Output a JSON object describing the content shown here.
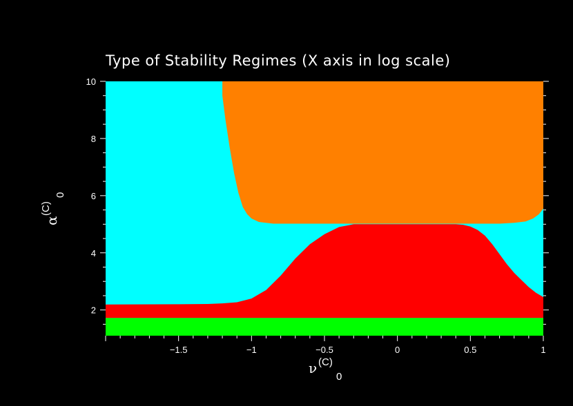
{
  "chart_data": {
    "type": "area",
    "title": "Type of Stability Regimes (X axis in log scale)",
    "xlabel": {
      "symbol": "ν",
      "superscript": "(C)",
      "subscript": "0"
    },
    "ylabel": {
      "symbol": "α",
      "superscript": "(C)",
      "subscript": "0"
    },
    "xlim": [
      -2,
      1
    ],
    "ylim": [
      1.1,
      10
    ],
    "x_ticks": [
      -1.5,
      -1,
      -0.5,
      0,
      0.5,
      1
    ],
    "x_tick_labels": [
      "−1.5",
      "−1",
      "−0.5",
      "0",
      "0.5",
      "1"
    ],
    "y_ticks": [
      2,
      4,
      6,
      8,
      10
    ],
    "y_tick_labels": [
      "2",
      "4",
      "6",
      "8",
      "10"
    ],
    "grid": false,
    "legend": "none",
    "background_color": "#00ffff",
    "regions": [
      {
        "color": "#00ff00",
        "polygon": [
          [
            -2,
            1.1
          ],
          [
            1,
            1.1
          ],
          [
            1,
            1.72
          ],
          [
            -2,
            1.72
          ]
        ]
      },
      {
        "color": "#ff0000",
        "polygon": [
          [
            -2,
            1.72
          ],
          [
            1,
            1.72
          ],
          [
            1,
            2.45
          ],
          [
            0.95,
            2.6
          ],
          [
            0.9,
            2.8
          ],
          [
            0.85,
            3.05
          ],
          [
            0.8,
            3.3
          ],
          [
            0.75,
            3.6
          ],
          [
            0.7,
            3.95
          ],
          [
            0.65,
            4.3
          ],
          [
            0.6,
            4.6
          ],
          [
            0.55,
            4.8
          ],
          [
            0.5,
            4.92
          ],
          [
            0.45,
            4.98
          ],
          [
            0.4,
            5.0
          ],
          [
            -0.3,
            5.0
          ],
          [
            -0.4,
            4.9
          ],
          [
            -0.5,
            4.65
          ],
          [
            -0.6,
            4.3
          ],
          [
            -0.7,
            3.8
          ],
          [
            -0.8,
            3.2
          ],
          [
            -0.9,
            2.7
          ],
          [
            -1.0,
            2.4
          ],
          [
            -1.1,
            2.27
          ],
          [
            -1.2,
            2.23
          ],
          [
            -1.3,
            2.21
          ],
          [
            -1.5,
            2.2
          ],
          [
            -2,
            2.19
          ]
        ]
      },
      {
        "color": "#ff8000",
        "polygon": [
          [
            -1.2,
            10
          ],
          [
            1,
            10
          ],
          [
            1,
            5.55
          ],
          [
            0.97,
            5.35
          ],
          [
            0.93,
            5.2
          ],
          [
            0.88,
            5.1
          ],
          [
            0.8,
            5.05
          ],
          [
            0.7,
            5.02
          ],
          [
            -0.85,
            5.02
          ],
          [
            -0.95,
            5.08
          ],
          [
            -1.0,
            5.2
          ],
          [
            -1.03,
            5.35
          ],
          [
            -1.06,
            5.6
          ],
          [
            -1.09,
            6.1
          ],
          [
            -1.12,
            6.8
          ],
          [
            -1.15,
            7.7
          ],
          [
            -1.18,
            8.7
          ],
          [
            -1.2,
            9.5
          ]
        ]
      }
    ]
  }
}
